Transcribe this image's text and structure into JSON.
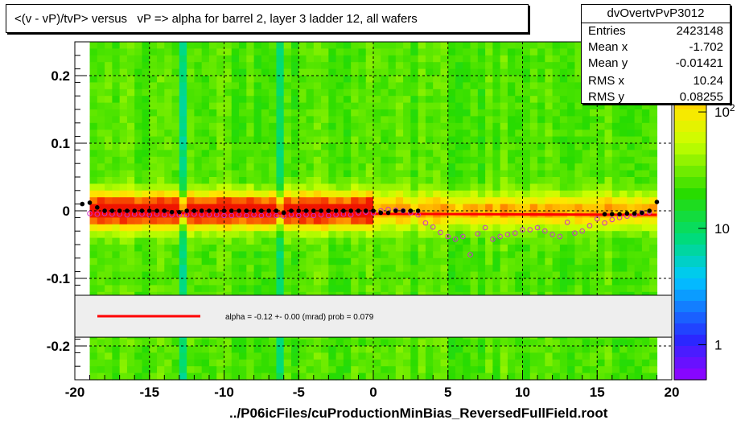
{
  "title": "<(v - vP)/tvP> versus   vP => alpha for barrel 2, layer 3 ladder 12, all wafers",
  "stats": {
    "name": "dvOvertvPvP3012",
    "rows": [
      {
        "key": "Entries",
        "value": "2423148"
      },
      {
        "key": "Mean x",
        "value": "-1.702"
      },
      {
        "key": "Mean y",
        "value": "-0.01421"
      },
      {
        "key": "RMS x",
        "value": "10.24"
      },
      {
        "key": "RMS y",
        "value": "0.08255"
      }
    ]
  },
  "fit_legend": "alpha =   -0.12 +-  0.00 (mrad) prob = 0.079",
  "xfile_label": "../P06icFiles/cuProductionMinBias_ReversedFullField.root",
  "colors": {
    "fit_line": "#ff0000",
    "profile_markers": "#000000",
    "open_markers": "#cc33cc",
    "legend_fill": "#eeeeee"
  },
  "chart_data": {
    "type": "heatmap",
    "xlim": [
      -20,
      20
    ],
    "ylim": [
      -0.25,
      0.25
    ],
    "x_ticks": [
      -20,
      -15,
      -10,
      -5,
      0,
      5,
      10,
      15,
      20
    ],
    "y_ticks": [
      -0.2,
      -0.1,
      0,
      0.1,
      0.2
    ],
    "y_tick_labels": [
      "-0.2",
      "-0.1",
      "0",
      "0.1",
      "0.2"
    ],
    "grid": true,
    "z_scale": "log",
    "z_tick_labels": [
      "1",
      "10",
      "10^2"
    ],
    "z_tick_values": [
      1,
      10,
      100
    ],
    "z_range": [
      0.5,
      400
    ],
    "fit_line": {
      "x": [
        -19,
        19
      ],
      "y": [
        -0.003,
        -0.006
      ]
    },
    "profile_series": {
      "x": [
        -19.5,
        -19,
        -18.5,
        -18,
        -17.5,
        -17,
        -16.5,
        -16,
        -15.5,
        -15,
        -14.5,
        -14,
        -13.5,
        -13,
        -12.5,
        -12,
        -11.5,
        -11,
        -10.5,
        -10,
        -9.5,
        -9,
        -8.5,
        -8,
        -7.5,
        -7,
        -6.5,
        -6,
        -5.5,
        -5,
        -4.5,
        -4,
        -3.5,
        -3,
        -2.5,
        -2,
        -1.5,
        -1,
        -0.5,
        0,
        0.5,
        1,
        1.5,
        2,
        2.5,
        3,
        15.5,
        16,
        16.5,
        17,
        17.5,
        18,
        18.5,
        19
      ],
      "y": [
        0.01,
        0.012,
        0.005,
        0,
        0,
        0,
        0,
        0,
        0,
        0,
        0,
        0,
        -0.002,
        -0.002,
        0,
        0,
        0,
        0,
        0,
        0,
        0,
        0,
        0,
        0,
        0,
        0,
        0,
        -0.003,
        0,
        0,
        0,
        0,
        0,
        0,
        0,
        0,
        0,
        0,
        0,
        0,
        -0.003,
        -0.003,
        0,
        0,
        0,
        0,
        -0.005,
        -0.005,
        -0.005,
        -0.004,
        -0.004,
        -0.003,
        0,
        0.013
      ]
    },
    "open_series": {
      "x": [
        -19,
        -18.5,
        -18,
        -17.5,
        -17,
        -16.5,
        -16,
        -15.5,
        -15,
        -14.5,
        -14,
        -13.5,
        -13,
        -12.5,
        -12,
        -11.5,
        -11,
        -10.5,
        -10,
        -9.5,
        -9,
        -8.5,
        -8,
        -7.5,
        -7,
        -6.5,
        -6,
        -5.5,
        -5,
        -4.5,
        -4,
        -3.5,
        -3,
        -2.5,
        -2,
        -1.5,
        -1,
        -0.5,
        0,
        0.5,
        1,
        1.5,
        2,
        2.5,
        3,
        3.5,
        4,
        4.5,
        5,
        5.5,
        6,
        6.5,
        7,
        7.5,
        8,
        8.5,
        9,
        9.5,
        10,
        10.5,
        11,
        11.5,
        12,
        12.5,
        13,
        13.5,
        14,
        14.5,
        15,
        15.5,
        16,
        16.5,
        17,
        17.5,
        18,
        18.5
      ],
      "y": [
        -0.004,
        -0.005,
        -0.004,
        -0.005,
        -0.005,
        -0.006,
        -0.005,
        -0.005,
        -0.006,
        -0.005,
        -0.006,
        -0.006,
        -0.006,
        -0.006,
        -0.005,
        -0.006,
        -0.006,
        -0.006,
        -0.007,
        -0.007,
        -0.006,
        -0.007,
        -0.006,
        -0.007,
        -0.006,
        -0.007,
        -0.008,
        -0.006,
        -0.007,
        -0.006,
        -0.007,
        -0.006,
        -0.007,
        -0.006,
        -0.005,
        -0.006,
        -0.003,
        -0.002,
        -0.003,
        0,
        0.002,
        0.001,
        0,
        -0.003,
        -0.006,
        -0.018,
        -0.024,
        -0.032,
        -0.038,
        -0.042,
        -0.038,
        -0.065,
        -0.034,
        -0.025,
        -0.042,
        -0.038,
        -0.035,
        -0.033,
        -0.028,
        -0.028,
        -0.025,
        -0.03,
        -0.035,
        -0.038,
        -0.017,
        -0.033,
        -0.03,
        -0.022,
        -0.012,
        -0.018,
        -0.013,
        -0.01,
        -0.008,
        -0.006,
        -0.003,
        -0.002
      ]
    }
  }
}
